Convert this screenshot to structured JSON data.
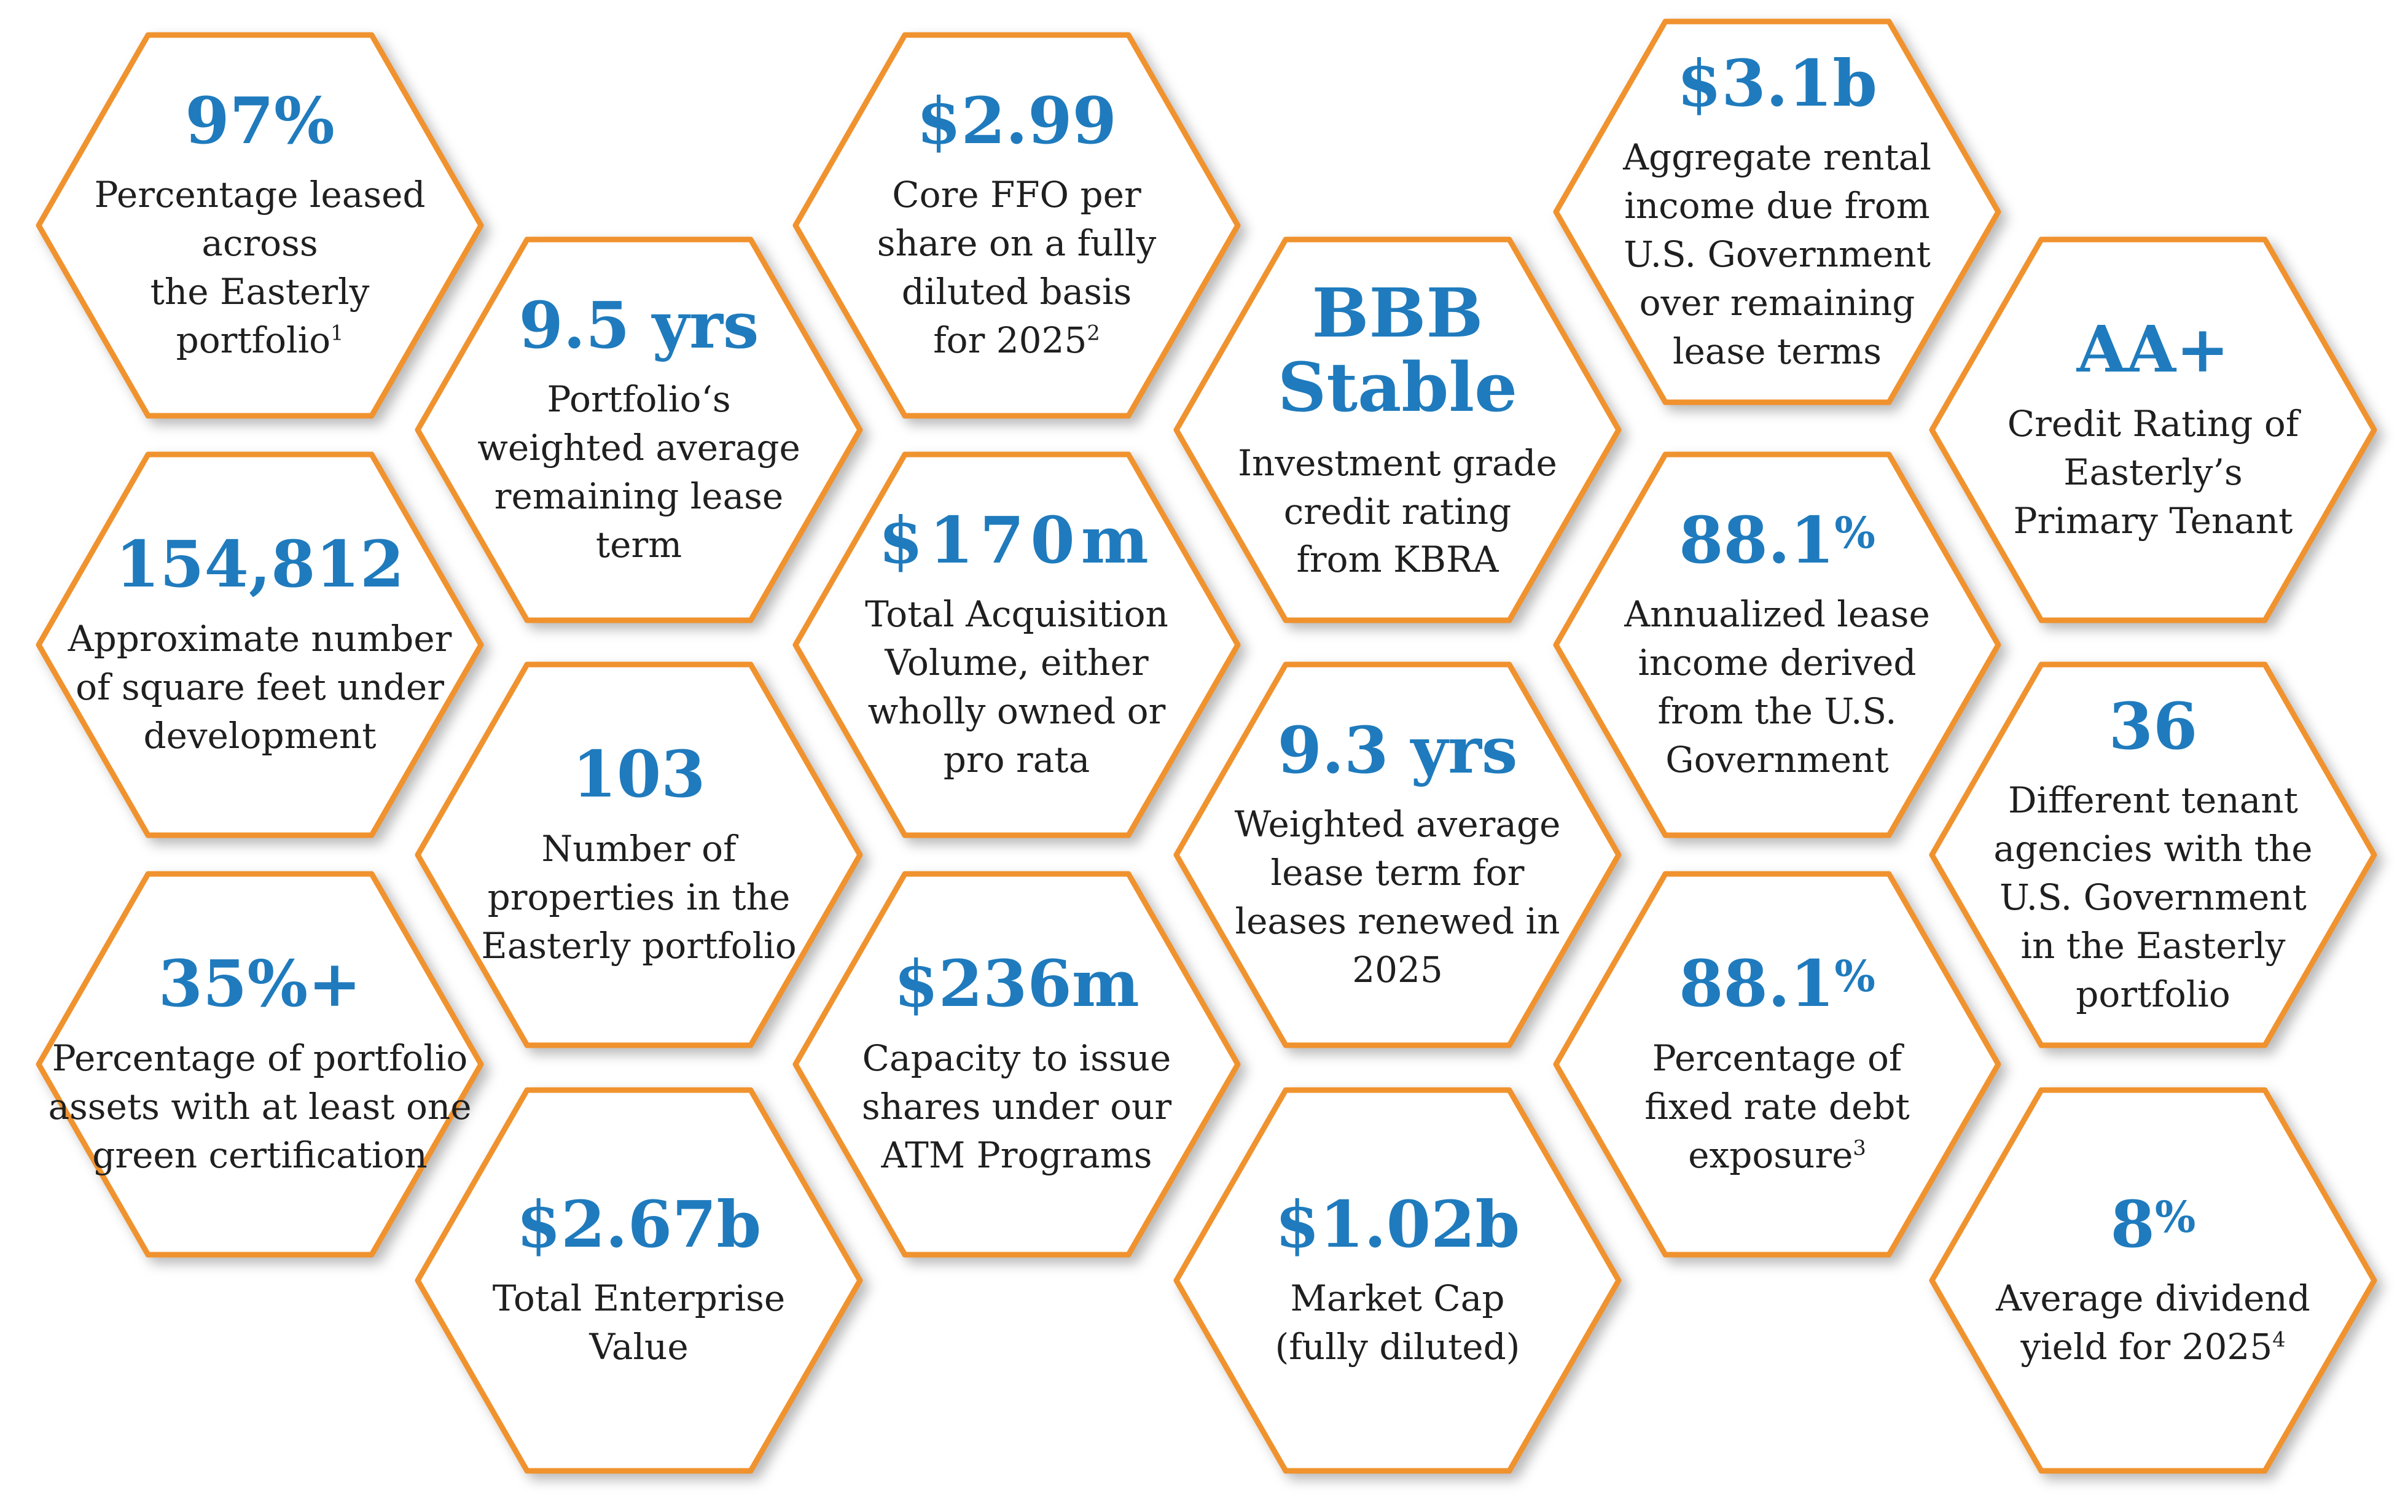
{
  "colors": {
    "hex_border": "#f0922e",
    "hex_fill": "#ffffff",
    "stat_text": "#1f7bbd",
    "body_text": "#1f1f1f"
  },
  "hexes": {
    "h1": {
      "stat": "97%",
      "desc": [
        "Percentage leased",
        "across",
        "the Easterly",
        "portfolio"
      ],
      "footnote": "1"
    },
    "h2": {
      "stat": "154,812",
      "desc": [
        "Approximate number",
        "of square feet under",
        "development"
      ]
    },
    "h3": {
      "stat": "35%+",
      "desc": [
        "Percentage of portfolio",
        "assets with at least one",
        "green certification"
      ]
    },
    "h4": {
      "stat": "9.5 yrs",
      "desc": [
        "Portfolio‘s",
        "weighted average",
        "remaining lease",
        "term"
      ]
    },
    "h5": {
      "stat": "103",
      "desc": [
        "Number of",
        "properties in the",
        "Easterly portfolio"
      ]
    },
    "h6": {
      "stat": "$2.67b",
      "desc": [
        "Total Enterprise",
        "Value"
      ]
    },
    "h7": {
      "stat": "$2.99",
      "desc": [
        "Core FFO per",
        "share on a fully",
        "diluted basis",
        "for 2025"
      ],
      "footnote": "2"
    },
    "h8": {
      "stat": "$170m",
      "desc": [
        "Total Acquisition",
        "Volume, either",
        "wholly owned or",
        "pro rata"
      ]
    },
    "h9": {
      "stat": "$236m",
      "desc": [
        "Capacity to issue",
        "shares under our",
        "ATM Programs"
      ]
    },
    "h10": {
      "stat_lines": [
        "BBB",
        "Stable"
      ],
      "desc": [
        "Investment grade",
        "credit rating",
        "from KBRA"
      ]
    },
    "h11": {
      "stat": "9.3 yrs",
      "desc": [
        "Weighted average",
        "lease term for",
        "leases renewed in",
        "2025"
      ]
    },
    "h12": {
      "stat": "$1.02b",
      "desc": [
        "Market Cap",
        "(fully diluted)"
      ]
    },
    "h13": {
      "stat": "$3.1b",
      "desc": [
        "Aggregate rental",
        "income due from",
        "U.S. Government",
        "over remaining",
        "lease terms"
      ]
    },
    "h14": {
      "stat": "88.1",
      "stat_suffix": "%",
      "desc": [
        "Annualized lease",
        "income derived",
        "from the U.S.",
        "Government"
      ]
    },
    "h15": {
      "stat": "88.1",
      "stat_suffix": "%",
      "desc": [
        "Percentage of",
        "fixed rate debt",
        "exposure"
      ],
      "footnote": "3"
    },
    "h16": {
      "stat": "AA+",
      "desc": [
        "Credit Rating of",
        "Easterly’s",
        "Primary Tenant"
      ]
    },
    "h17": {
      "stat": "36",
      "desc": [
        "Different tenant",
        "agencies with the",
        "U.S. Government",
        "in the Easterly",
        "portfolio"
      ]
    },
    "h18": {
      "stat": "8",
      "stat_suffix": "%",
      "desc": [
        "Average dividend",
        "yield for 2025"
      ],
      "footnote": "4"
    }
  }
}
